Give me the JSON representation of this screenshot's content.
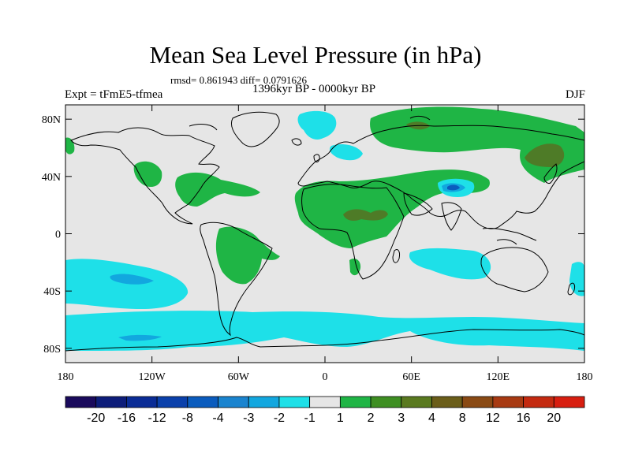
{
  "title": "Mean Sea Level Pressure (in hPa)",
  "stats": "rmsd= 0.861943 diff= 0.0791626",
  "experiment": "Expt = tFmE5-tfmea",
  "period": "1396kyr BP - 0000kyr BP",
  "season": "DJF",
  "axes": {
    "x_ticks": [
      "180",
      "120W",
      "60W",
      "0",
      "60E",
      "120E",
      "180"
    ],
    "y_ticks": [
      "80N",
      "40N",
      "0",
      "40S",
      "80S"
    ]
  },
  "colorbar": {
    "labels": [
      "-20",
      "-16",
      "-12",
      "-8",
      "-4",
      "-3",
      "-2",
      "-1",
      "1",
      "2",
      "3",
      "4",
      "8",
      "12",
      "16",
      "20"
    ],
    "colors": [
      "#1a0a5c",
      "#0d1d7a",
      "#0a2c96",
      "#0a40ab",
      "#0a5cbe",
      "#1a84cf",
      "#12a7df",
      "#1ee0e8",
      "#e6e6e6",
      "#1fb545",
      "#3e8f22",
      "#5a7a20",
      "#6b5e1a",
      "#8a4a14",
      "#a83a12",
      "#c42a10",
      "#d81e10"
    ],
    "background": "#e6e6e6"
  },
  "regions": [
    {
      "name": "positive-1-2",
      "color": "#1fb545"
    },
    {
      "name": "positive-2-3",
      "color": "#4e7b27"
    },
    {
      "name": "negative-1-2",
      "color": "#1ee0e8"
    },
    {
      "name": "negative-2-3",
      "color": "#12a7df"
    },
    {
      "name": "negative-3-4",
      "color": "#0a5cbe"
    }
  ]
}
